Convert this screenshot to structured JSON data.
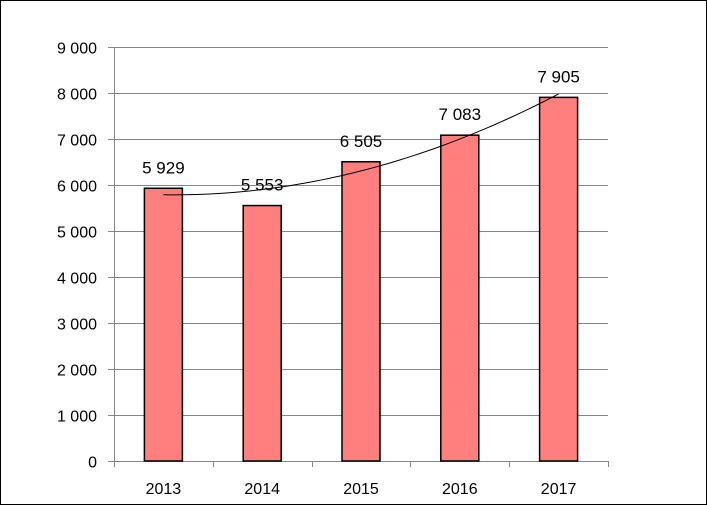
{
  "colors": {
    "bar_fill": "#ff7f7f",
    "bar_stroke": "#000000",
    "grid": "#868686",
    "axis": "#868686",
    "trend": "#000000"
  },
  "chart_data": {
    "type": "bar",
    "title": "",
    "xlabel": "",
    "ylabel": "",
    "categories": [
      "2013",
      "2014",
      "2015",
      "2016",
      "2017"
    ],
    "series": [
      {
        "values": [
          5929,
          5553,
          6505,
          7083,
          7905
        ],
        "data_labels": [
          "5 929",
          "5 553",
          "6 505",
          "7 083",
          "7 905"
        ]
      }
    ],
    "trendline": {
      "type": "polynomial",
      "order": 2
    },
    "ylim": [
      0,
      9000
    ],
    "y_ticks": [
      0,
      1000,
      2000,
      3000,
      4000,
      5000,
      6000,
      7000,
      8000,
      9000
    ],
    "y_tick_labels": [
      "0",
      "1 000",
      "2 000",
      "3 000",
      "4 000",
      "5 000",
      "6 000",
      "7 000",
      "8 000",
      "9 000"
    ],
    "grid": true,
    "legend": "none"
  }
}
